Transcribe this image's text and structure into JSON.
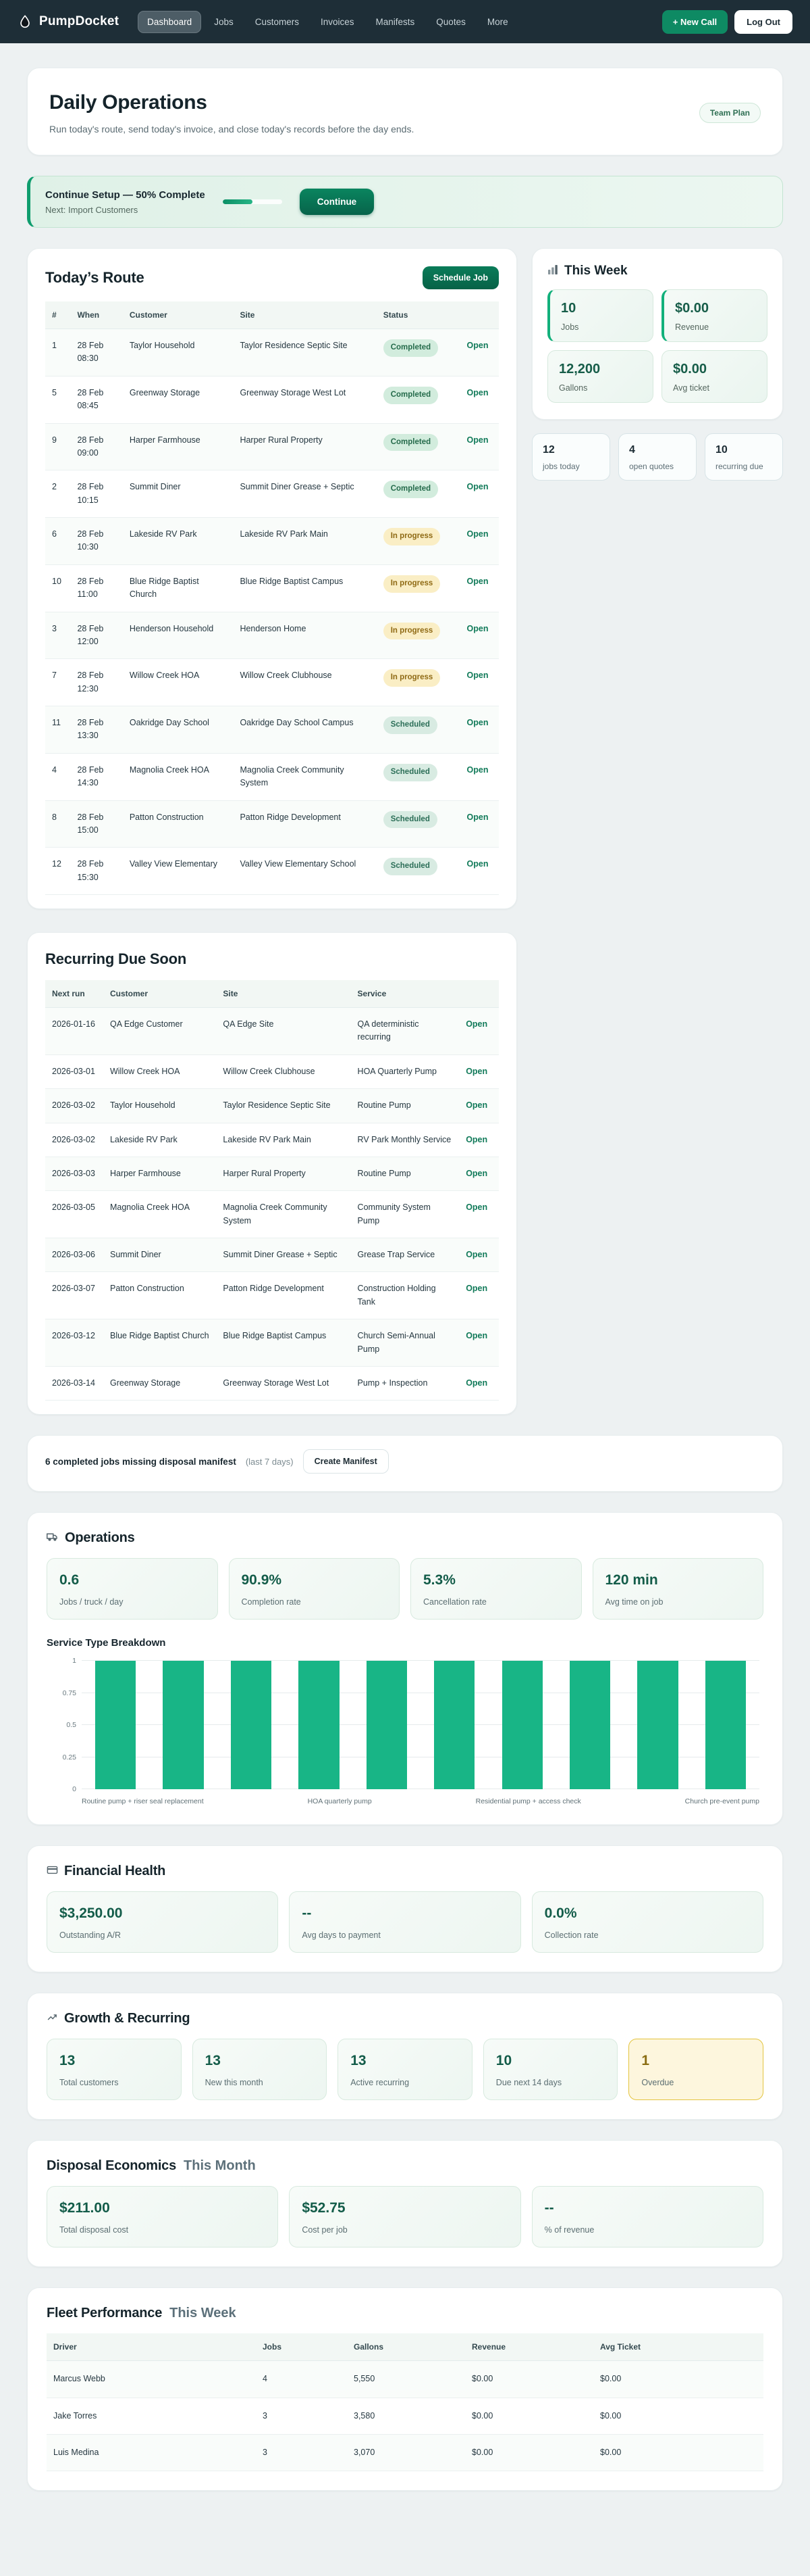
{
  "colors": {
    "navbar_bg": "#1e2e37",
    "accent_green": "#0e8a63",
    "dark_green_value": "#135c49",
    "bar_color": "#18b586",
    "badge_completed_bg": "#d2ecdd",
    "badge_inprogress_bg": "#faeec5",
    "badge_scheduled_bg": "#d8ebe2",
    "overdue_bg": "#fdf6dd",
    "overdue_border": "#e3c43f",
    "page_bg": "#edf1f2"
  },
  "nav": {
    "brand": "PumpDocket",
    "items": [
      {
        "label": "Dashboard",
        "active": true
      },
      {
        "label": "Jobs",
        "active": false
      },
      {
        "label": "Customers",
        "active": false
      },
      {
        "label": "Invoices",
        "active": false
      },
      {
        "label": "Manifests",
        "active": false
      },
      {
        "label": "Quotes",
        "active": false
      },
      {
        "label": "More",
        "active": false
      }
    ],
    "new_call_label": "+ New Call",
    "logout_label": "Log Out"
  },
  "header": {
    "title": "Daily Operations",
    "subtitle": "Run today's route, send today's invoice, and close today's records before the day ends.",
    "plan_badge": "Team Plan"
  },
  "setup": {
    "title": "Continue Setup — 50% Complete",
    "next": "Next: Import Customers",
    "progress_pct": 50,
    "button_label": "Continue"
  },
  "todays_route": {
    "title": "Today’s Route",
    "schedule_button": "Schedule Job",
    "open_label": "Open",
    "columns": [
      "#",
      "When",
      "Customer",
      "Site",
      "Status",
      ""
    ],
    "rows": [
      {
        "num": "1",
        "when": "28 Feb 08:30",
        "customer": "Taylor Household",
        "site": "Taylor Residence Septic Site",
        "status": "Completed",
        "status_class": "completed"
      },
      {
        "num": "5",
        "when": "28 Feb 08:45",
        "customer": "Greenway Storage",
        "site": "Greenway Storage West Lot",
        "status": "Completed",
        "status_class": "completed"
      },
      {
        "num": "9",
        "when": "28 Feb 09:00",
        "customer": "Harper Farmhouse",
        "site": "Harper Rural Property",
        "status": "Completed",
        "status_class": "completed"
      },
      {
        "num": "2",
        "when": "28 Feb 10:15",
        "customer": "Summit Diner",
        "site": "Summit Diner Grease + Septic",
        "status": "Completed",
        "status_class": "completed"
      },
      {
        "num": "6",
        "when": "28 Feb 10:30",
        "customer": "Lakeside RV Park",
        "site": "Lakeside RV Park Main",
        "status": "In progress",
        "status_class": "inprogress"
      },
      {
        "num": "10",
        "when": "28 Feb 11:00",
        "customer": "Blue Ridge Baptist Church",
        "site": "Blue Ridge Baptist Campus",
        "status": "In progress",
        "status_class": "inprogress"
      },
      {
        "num": "3",
        "when": "28 Feb 12:00",
        "customer": "Henderson Household",
        "site": "Henderson Home",
        "status": "In progress",
        "status_class": "inprogress"
      },
      {
        "num": "7",
        "when": "28 Feb 12:30",
        "customer": "Willow Creek HOA",
        "site": "Willow Creek Clubhouse",
        "status": "In progress",
        "status_class": "inprogress"
      },
      {
        "num": "11",
        "when": "28 Feb 13:30",
        "customer": "Oakridge Day School",
        "site": "Oakridge Day School Campus",
        "status": "Scheduled",
        "status_class": "scheduled"
      },
      {
        "num": "4",
        "when": "28 Feb 14:30",
        "customer": "Magnolia Creek HOA",
        "site": "Magnolia Creek Community System",
        "status": "Scheduled",
        "status_class": "scheduled"
      },
      {
        "num": "8",
        "when": "28 Feb 15:00",
        "customer": "Patton Construction",
        "site": "Patton Ridge Development",
        "status": "Scheduled",
        "status_class": "scheduled"
      },
      {
        "num": "12",
        "when": "28 Feb 15:30",
        "customer": "Valley View Elementary",
        "site": "Valley View Elementary School",
        "status": "Scheduled",
        "status_class": "scheduled"
      }
    ]
  },
  "this_week": {
    "title": "This Week",
    "tiles": [
      {
        "value": "10",
        "label": "Jobs",
        "accent": true
      },
      {
        "value": "$0.00",
        "label": "Revenue",
        "accent": true
      },
      {
        "value": "12,200",
        "label": "Gallons",
        "accent": false
      },
      {
        "value": "$0.00",
        "label": "Avg ticket",
        "accent": false
      }
    ],
    "mini_tiles": [
      {
        "value": "12",
        "label": "jobs today"
      },
      {
        "value": "4",
        "label": "open quotes"
      },
      {
        "value": "10",
        "label": "recurring due"
      }
    ]
  },
  "recurring": {
    "title": "Recurring Due Soon",
    "open_label": "Open",
    "columns": [
      "Next run",
      "Customer",
      "Site",
      "Service",
      ""
    ],
    "rows": [
      {
        "next_run": "2026-01-16",
        "customer": "QA Edge Customer",
        "site": "QA Edge Site",
        "service": "QA deterministic recurring"
      },
      {
        "next_run": "2026-03-01",
        "customer": "Willow Creek HOA",
        "site": "Willow Creek Clubhouse",
        "service": "HOA Quarterly Pump"
      },
      {
        "next_run": "2026-03-02",
        "customer": "Taylor Household",
        "site": "Taylor Residence Septic Site",
        "service": "Routine Pump"
      },
      {
        "next_run": "2026-03-02",
        "customer": "Lakeside RV Park",
        "site": "Lakeside RV Park Main",
        "service": "RV Park Monthly Service"
      },
      {
        "next_run": "2026-03-03",
        "customer": "Harper Farmhouse",
        "site": "Harper Rural Property",
        "service": "Routine Pump"
      },
      {
        "next_run": "2026-03-05",
        "customer": "Magnolia Creek HOA",
        "site": "Magnolia Creek Community System",
        "service": "Community System Pump"
      },
      {
        "next_run": "2026-03-06",
        "customer": "Summit Diner",
        "site": "Summit Diner Grease + Septic",
        "service": "Grease Trap Service"
      },
      {
        "next_run": "2026-03-07",
        "customer": "Patton Construction",
        "site": "Patton Ridge Development",
        "service": "Construction Holding Tank"
      },
      {
        "next_run": "2026-03-12",
        "customer": "Blue Ridge Baptist Church",
        "site": "Blue Ridge Baptist Campus",
        "service": "Church Semi-Annual Pump"
      },
      {
        "next_run": "2026-03-14",
        "customer": "Greenway Storage",
        "site": "Greenway Storage West Lot",
        "service": "Pump + Inspection"
      }
    ]
  },
  "manifest": {
    "text_bold": "6 completed jobs missing disposal manifest",
    "text_muted": "(last 7 days)",
    "button_label": "Create Manifest"
  },
  "operations": {
    "title": "Operations",
    "tiles": [
      {
        "value": "0.6",
        "label": "Jobs / truck / day"
      },
      {
        "value": "90.9%",
        "label": "Completion rate"
      },
      {
        "value": "5.3%",
        "label": "Cancellation rate"
      },
      {
        "value": "120 min",
        "label": "Avg time on job"
      }
    ],
    "chart_heading": "Service Type Breakdown",
    "chart_data": {
      "type": "bar",
      "title": "Service Type Breakdown",
      "values": [
        1,
        1,
        1,
        1,
        1,
        1,
        1,
        1,
        1,
        1
      ],
      "yticks": [
        0,
        0.25,
        0.5,
        0.75,
        1
      ],
      "ylim": [
        0,
        1
      ],
      "grid": true,
      "bar_color": "#18b586",
      "visible_x_labels": [
        "Routine pump + riser seal replacement",
        "HOA quarterly pump",
        "Residential pump + access check",
        "Church pre-event pump"
      ]
    }
  },
  "financial": {
    "title": "Financial Health",
    "tiles": [
      {
        "value": "$3,250.00",
        "label": "Outstanding A/R"
      },
      {
        "value": "--",
        "label": "Avg days to payment"
      },
      {
        "value": "0.0%",
        "label": "Collection rate"
      }
    ]
  },
  "growth": {
    "title": "Growth & Recurring",
    "tiles": [
      {
        "value": "13",
        "label": "Total customers",
        "overdue": false
      },
      {
        "value": "13",
        "label": "New this month",
        "overdue": false
      },
      {
        "value": "13",
        "label": "Active recurring",
        "overdue": false
      },
      {
        "value": "10",
        "label": "Due next 14 days",
        "overdue": false
      },
      {
        "value": "1",
        "label": "Overdue",
        "overdue": true
      }
    ]
  },
  "disposal": {
    "title": "Disposal Economics",
    "suffix": "This Month",
    "tiles": [
      {
        "value": "$211.00",
        "label": "Total disposal cost"
      },
      {
        "value": "$52.75",
        "label": "Cost per job"
      },
      {
        "value": "--",
        "label": "% of revenue"
      }
    ]
  },
  "fleet": {
    "title": "Fleet Performance",
    "suffix": "This Week",
    "columns": [
      "Driver",
      "Jobs",
      "Gallons",
      "Revenue",
      "Avg Ticket"
    ],
    "rows": [
      {
        "driver": "Marcus Webb",
        "jobs": "4",
        "gallons": "5,550",
        "revenue": "$0.00",
        "avg_ticket": "$0.00"
      },
      {
        "driver": "Jake Torres",
        "jobs": "3",
        "gallons": "3,580",
        "revenue": "$0.00",
        "avg_ticket": "$0.00"
      },
      {
        "driver": "Luis Medina",
        "jobs": "3",
        "gallons": "3,070",
        "revenue": "$0.00",
        "avg_ticket": "$0.00"
      }
    ]
  }
}
